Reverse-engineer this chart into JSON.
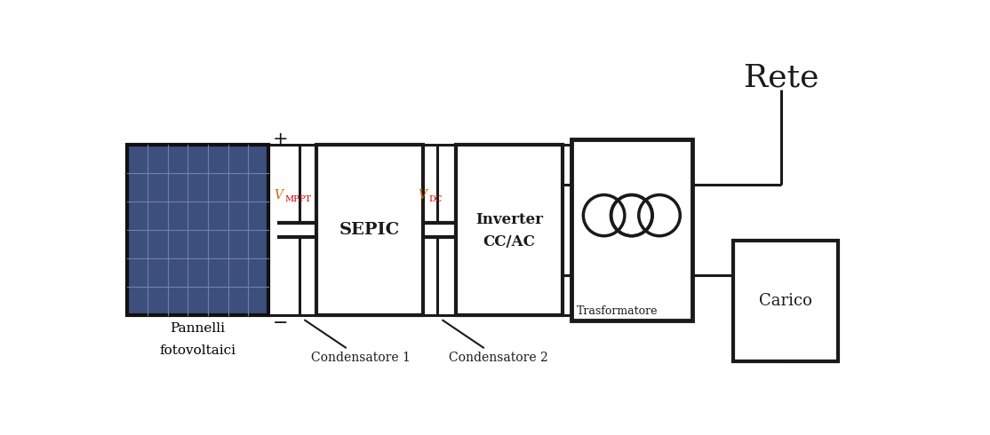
{
  "bg_color": "#ffffff",
  "line_color": "#1a1a1a",
  "lw_heavy": 3.0,
  "lw_med": 2.2,
  "lw_thin": 1.5,
  "pv_color": "#3d4f7c",
  "pv_grid_color": "#7080b0",
  "labels": {
    "pannelli_line1": "Pannelli",
    "pannelli_line2": "fotovoltaici",
    "sepic": "SEPIC",
    "inverter_line1": "Inverter",
    "inverter_line2": "CC/AC",
    "trasformatore": "Trasformatore",
    "rete": "Rete",
    "carico": "Carico",
    "vmpp": "V",
    "vmpp_sub": "MPPT",
    "vdc": "V",
    "vdc_sub": "DC",
    "plus": "+",
    "minus": "−",
    "cond1": "Condensatore 1",
    "cond2": "Condensatore 2"
  },
  "colors": {
    "vmpp_main": "#cc6600",
    "vmpp_sub": "#cc0000",
    "vdc_main": "#cc6600",
    "vdc_sub": "#cc0000",
    "pannelli_text": "#000000",
    "cond_text": "#000000"
  }
}
